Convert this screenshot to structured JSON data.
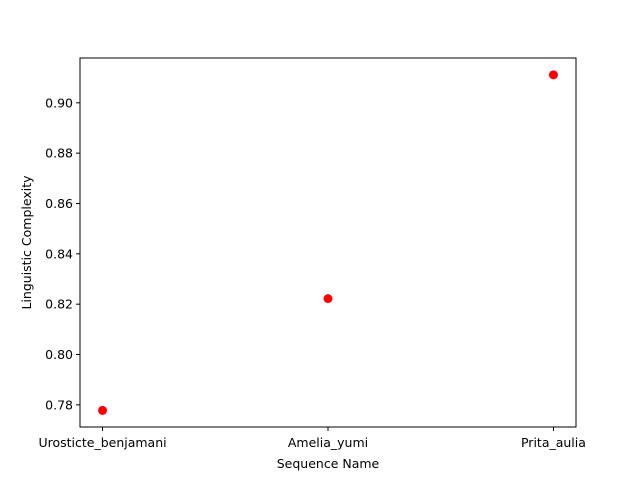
{
  "chart_data": {
    "type": "scatter",
    "title": "",
    "xlabel": "Sequence Name",
    "ylabel": "Linguistic Complexity",
    "categories": [
      "Urosticte_benjamani",
      "Amelia_yumi",
      "Prita_aulia"
    ],
    "series": [
      {
        "values": [
          0.7778,
          0.8222,
          0.9111
        ],
        "color": "#ff0000"
      }
    ],
    "ylim": [
      0.7712,
      0.9178
    ],
    "yticks": [
      0.78,
      0.8,
      0.82,
      0.84,
      0.86,
      0.88,
      0.9
    ],
    "ytick_labels": [
      "0.78",
      "0.80",
      "0.82",
      "0.84",
      "0.86",
      "0.88",
      "0.90"
    ],
    "grid": false,
    "legend": "none"
  }
}
